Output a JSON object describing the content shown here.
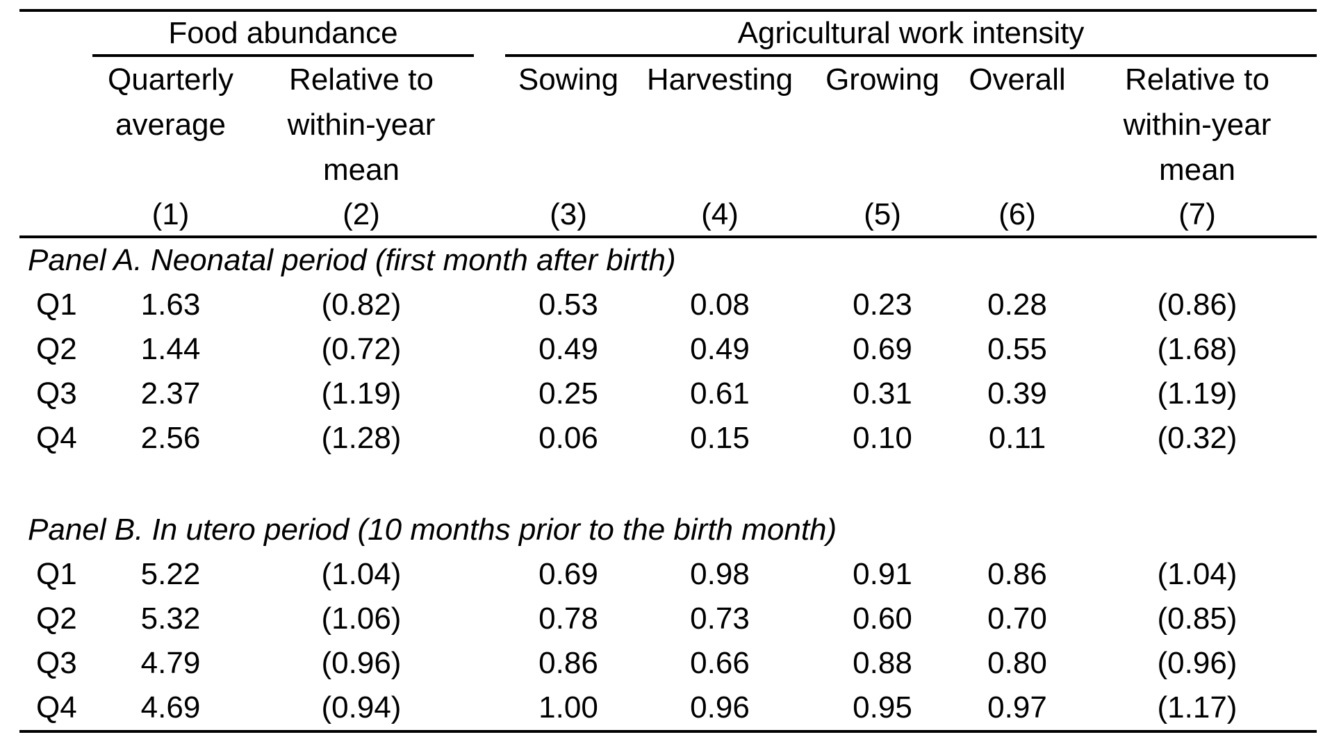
{
  "colors": {
    "background": "#ffffff",
    "text": "#000000",
    "rule": "#000000"
  },
  "table": {
    "groups": [
      {
        "label": "Food abundance"
      },
      {
        "label": "Agricultural work intensity"
      }
    ],
    "columns": [
      {
        "header": "Quarterly\naverage",
        "number": "(1)"
      },
      {
        "header": "Relative to\nwithin-year\nmean",
        "number": "(2)"
      },
      {
        "header": "Sowing",
        "number": "(3)"
      },
      {
        "header": "Harvesting",
        "number": "(4)"
      },
      {
        "header": "Growing",
        "number": "(5)"
      },
      {
        "header": "Overall",
        "number": "(6)"
      },
      {
        "header": "Relative to\nwithin-year\nmean",
        "number": "(7)"
      }
    ],
    "panels": [
      {
        "title": "Panel A. Neonatal period (first month after birth)",
        "rows": [
          {
            "label": "Q1",
            "values": [
              "1.63",
              "(0.82)",
              "0.53",
              "0.08",
              "0.23",
              "0.28",
              "(0.86)"
            ]
          },
          {
            "label": "Q2",
            "values": [
              "1.44",
              "(0.72)",
              "0.49",
              "0.49",
              "0.69",
              "0.55",
              "(1.68)"
            ]
          },
          {
            "label": "Q3",
            "values": [
              "2.37",
              "(1.19)",
              "0.25",
              "0.61",
              "0.31",
              "0.39",
              "(1.19)"
            ]
          },
          {
            "label": "Q4",
            "values": [
              "2.56",
              "(1.28)",
              "0.06",
              "0.15",
              "0.10",
              "0.11",
              "(0.32)"
            ]
          }
        ]
      },
      {
        "title": "Panel B. In utero period (10 months prior to the birth month)",
        "rows": [
          {
            "label": "Q1",
            "values": [
              "5.22",
              "(1.04)",
              "0.69",
              "0.98",
              "0.91",
              "0.86",
              "(1.04)"
            ]
          },
          {
            "label": "Q2",
            "values": [
              "5.32",
              "(1.06)",
              "0.78",
              "0.73",
              "0.60",
              "0.70",
              "(0.85)"
            ]
          },
          {
            "label": "Q3",
            "values": [
              "4.79",
              "(0.96)",
              "0.86",
              "0.66",
              "0.88",
              "0.80",
              "(0.96)"
            ]
          },
          {
            "label": "Q4",
            "values": [
              "4.69",
              "(0.94)",
              "1.00",
              "0.96",
              "0.95",
              "0.97",
              "(1.17)"
            ]
          }
        ]
      }
    ]
  }
}
